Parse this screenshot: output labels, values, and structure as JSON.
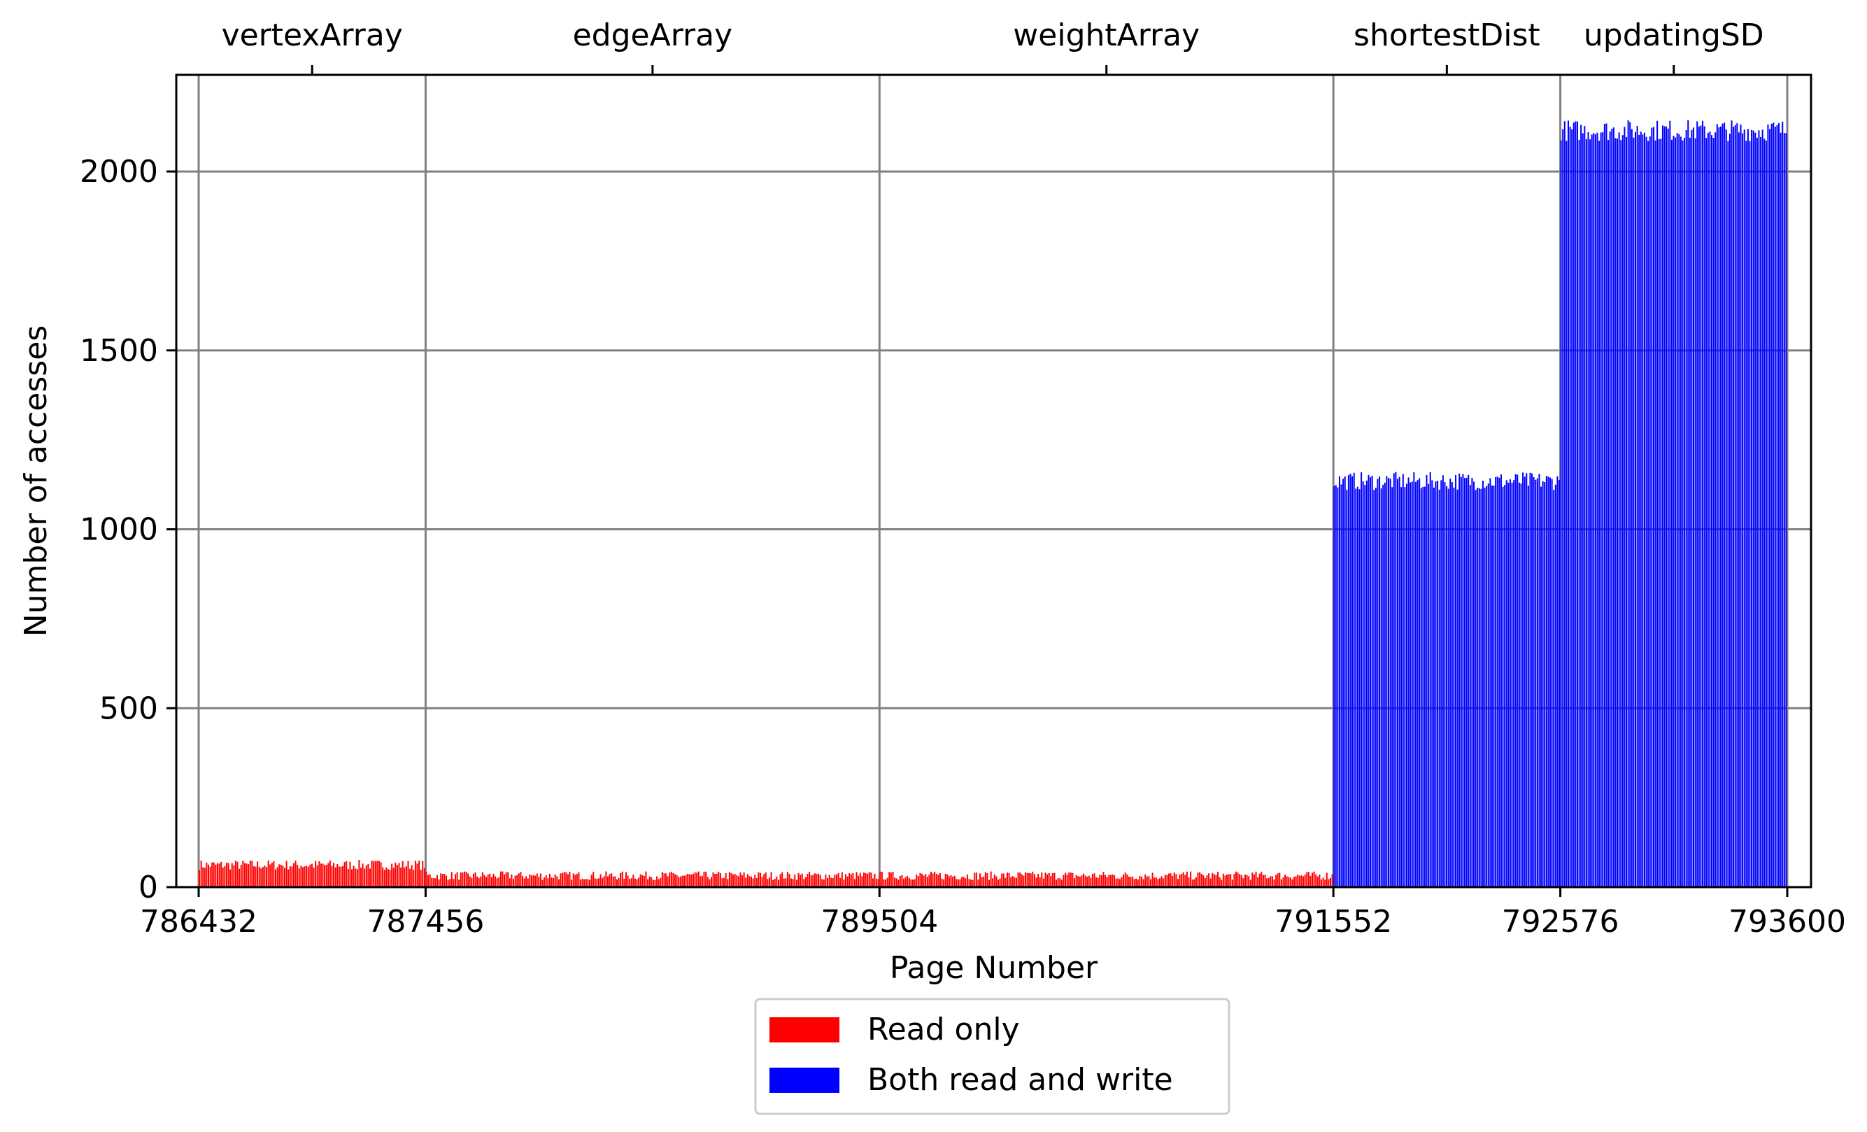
{
  "chart_data": {
    "type": "bar",
    "xlabel": "Page Number",
    "ylabel": "Number of accesses",
    "xlim": [
      786432,
      793600
    ],
    "ylim": [
      0,
      2270
    ],
    "grid": true,
    "x_ticks": [
      786432,
      787456,
      789504,
      791552,
      792576,
      793600
    ],
    "x_tick_labels": [
      "786432",
      "787456",
      "789504",
      "791552",
      "792576",
      "793600"
    ],
    "y_ticks": [
      0,
      500,
      1000,
      1500,
      2000
    ],
    "y_tick_labels": [
      "0",
      "500",
      "1000",
      "1500",
      "2000"
    ],
    "top_axis_labels": [
      {
        "label": "vertexArray",
        "x": 786944
      },
      {
        "label": "edgeArray",
        "x": 788480
      },
      {
        "label": "weightArray",
        "x": 790528
      },
      {
        "label": "shortestDist",
        "x": 792064
      },
      {
        "label": "updatingSD",
        "x": 793088
      }
    ],
    "series": [
      {
        "name": "Read only",
        "color": "#ff0000",
        "segments": [
          {
            "label": "vertexArray",
            "x_start": 786432,
            "x_end": 787456,
            "mean": 62,
            "variation": 14
          },
          {
            "label": "edgeArray",
            "x_start": 787456,
            "x_end": 789504,
            "mean": 32,
            "variation": 12
          },
          {
            "label": "weightArray",
            "x_start": 789504,
            "x_end": 791552,
            "mean": 32,
            "variation": 12
          }
        ]
      },
      {
        "name": "Both read and write",
        "color": "#0000ff",
        "segments": [
          {
            "label": "shortestDist",
            "x_start": 791552,
            "x_end": 792576,
            "mean": 1135,
            "variation": 25
          },
          {
            "label": "updatingSD",
            "x_start": 792576,
            "x_end": 793600,
            "mean": 2115,
            "variation": 30
          }
        ]
      }
    ],
    "legend": {
      "placement": "bottom-center",
      "entries": [
        {
          "label": "Read only",
          "color": "#ff0000"
        },
        {
          "label": "Both read and write",
          "color": "#0000ff"
        }
      ]
    }
  }
}
